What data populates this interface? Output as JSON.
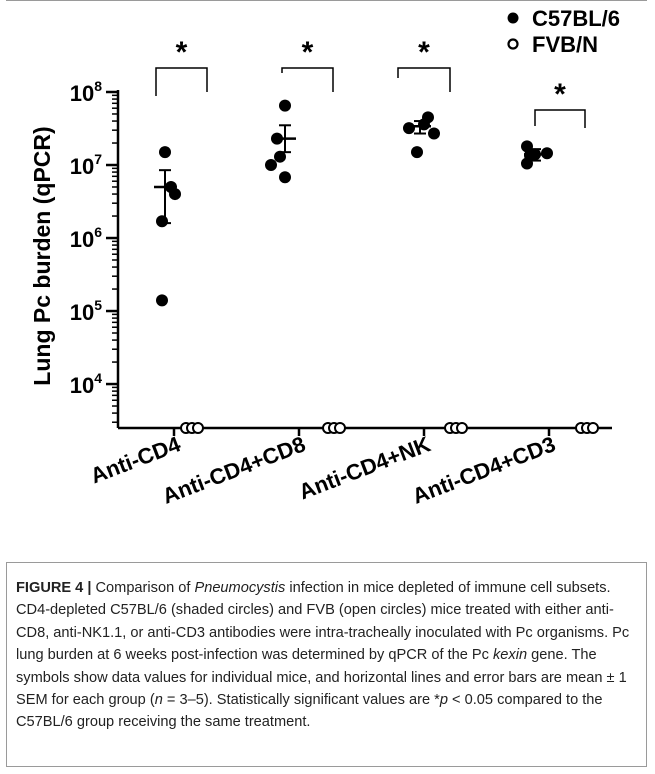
{
  "chart_data": {
    "type": "scatter",
    "ylabel": "Lung Pc burden (qPCR)",
    "yscale": "log",
    "ylim": [
      2500,
      100000000
    ],
    "ytick_values": [
      10000,
      100000,
      1000000,
      10000000,
      100000000
    ],
    "ytick_labels": [
      {
        "base": "10",
        "exp": "4"
      },
      {
        "base": "10",
        "exp": "5"
      },
      {
        "base": "10",
        "exp": "6"
      },
      {
        "base": "10",
        "exp": "7"
      },
      {
        "base": "10",
        "exp": "8"
      }
    ],
    "categories": [
      "Anti-CD4",
      "Anti-CD4+CD8",
      "Anti-CD4+NK",
      "Anti-CD4+CD3"
    ],
    "legend_placement": "top-right",
    "significance_marker": "*",
    "series": [
      {
        "name": "C57BL/6",
        "marker": "filled-circle",
        "points": [
          [
            15000000,
            5000000,
            4000000,
            1700000,
            140000
          ],
          [
            65000000,
            23000000,
            13000000,
            10000000,
            6800000
          ],
          [
            45000000,
            36000000,
            32000000,
            27000000,
            15000000
          ],
          [
            18000000,
            14500000,
            14000000,
            13500000,
            10500000
          ]
        ],
        "mean": [
          5000000,
          23000000,
          34000000,
          14000000
        ],
        "sem_low": [
          1600000,
          15000000,
          27000000,
          11500000
        ],
        "sem_high": [
          8500000,
          35000000,
          40000000,
          16500000
        ]
      },
      {
        "name": "FVB/N",
        "marker": "open-circle",
        "points": [
          [
            2500,
            2500,
            2500
          ],
          [
            2500,
            2500,
            2500
          ],
          [
            2500,
            2500,
            2500
          ],
          [
            2500,
            2500,
            2500
          ]
        ]
      }
    ]
  },
  "caption": {
    "label": "FIGURE 4 |",
    "seg1": " Comparison of ",
    "italic1": "Pneumocystis",
    "seg2": " infection in mice depleted of immune cell subsets. CD4-depleted C57BL/6 (shaded circles) and FVB (open circles) mice treated with either anti-CD8, anti-NK1.1, or anti-CD3 antibodies were intra-tracheally inoculated with Pc organisms. Pc lung burden at 6 weeks post-infection was determined by qPCR of the Pc ",
    "italic2": "kexin",
    "seg3": " gene. The symbols show data values for individual mice, and horizontal lines and error bars are mean ± 1 SEM for each group (",
    "italic3": "n",
    "seg4": " = 3–5). Statistically significant values are *",
    "italic4": "p",
    "seg5": " < 0.05 compared to the C57BL/6 group receiving the same treatment."
  }
}
